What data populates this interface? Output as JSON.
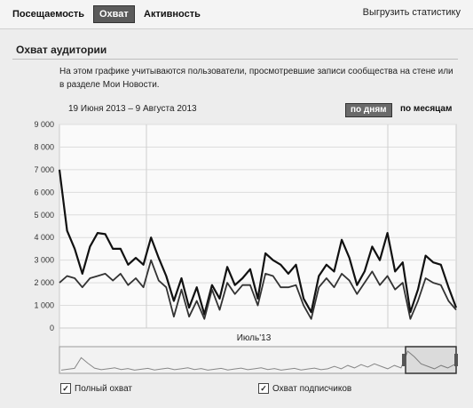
{
  "tabs": [
    {
      "label": "Посещаемость",
      "active": false
    },
    {
      "label": "Охват",
      "active": true
    },
    {
      "label": "Активность",
      "active": false
    }
  ],
  "export_label": "Выгрузить статистику",
  "section": {
    "title": "Охват аудитории",
    "description": "На этом графике учитываются пользователи, просмотревшие записи сообщества на стене или в разделе Мои Новости."
  },
  "date_range": "19 Июня 2013 – 9 Августа 2013",
  "period_buttons": {
    "days": "по дням",
    "months": "по месяцам"
  },
  "legend": [
    {
      "label": "Полный охват",
      "checked": true,
      "check_glyph": "✓"
    },
    {
      "label": "Охват подписчиков",
      "checked": true,
      "check_glyph": "✓"
    }
  ],
  "chart_data": {
    "type": "line",
    "ylim": [
      0,
      9000
    ],
    "ytick_labels": [
      "0",
      "1 000",
      "2 000",
      "3 000",
      "4 000",
      "5 000",
      "6 000",
      "7 000",
      "8 000",
      "9 000"
    ],
    "xtick_label": "Июль'13",
    "grid": true,
    "series": [
      {
        "color": "#111111",
        "values": [
          7000,
          4300,
          3500,
          2400,
          3600,
          4200,
          4150,
          3500,
          3500,
          2800,
          3100,
          2800,
          4000,
          3100,
          2300,
          1200,
          2200,
          900,
          1800,
          600,
          1900,
          1300,
          2700,
          1900,
          2200,
          2600,
          1300,
          3300,
          3000,
          2800,
          2400,
          2800,
          1300,
          700,
          2300,
          2800,
          2500,
          3900,
          3100,
          1900,
          2500,
          3600,
          3000,
          4200,
          2500,
          2900,
          700,
          1700,
          3200,
          2900,
          2800,
          1800,
          900
        ]
      },
      {
        "color": "#333333",
        "values": [
          2000,
          2300,
          2200,
          1800,
          2200,
          2300,
          2400,
          2100,
          2400,
          1900,
          2200,
          1800,
          3000,
          2100,
          1800,
          500,
          1700,
          500,
          1200,
          400,
          1700,
          800,
          2000,
          1500,
          1900,
          1900,
          1000,
          2400,
          2300,
          1800,
          1800,
          1900,
          1000,
          400,
          1800,
          2200,
          1800,
          2400,
          2100,
          1500,
          2000,
          2500,
          1900,
          2300,
          1700,
          2000,
          400,
          1200,
          2200,
          2000,
          1900,
          1200,
          800
        ]
      }
    ]
  }
}
